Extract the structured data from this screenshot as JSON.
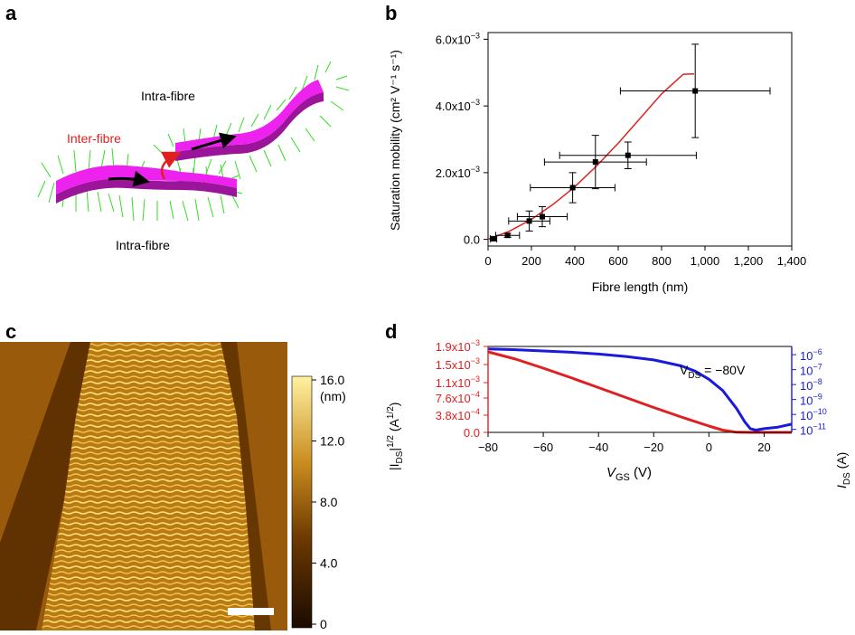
{
  "panels": {
    "a": {
      "letter": "a",
      "labels": {
        "intra_top": "Intra-fibre",
        "inter": "Inter-fibre",
        "intra_bottom": "Intra-fibre"
      },
      "colors": {
        "fibre": "#ee22ee",
        "fibre_dark": "#9b159b",
        "side_chains": "#33dd22",
        "inter_arrow": "#e02020",
        "label_inter": "#e02020",
        "transport_arrow": "#000000"
      }
    },
    "b": {
      "letter": "b"
    },
    "c": {
      "letter": "c",
      "colorbar": {
        "unit": "(nm)",
        "ticks": [
          "16.0",
          "12.0",
          "8.0",
          "4.0",
          "0"
        ]
      },
      "colors": {
        "afm_low": "#1a0b00",
        "afm_mid": "#8a4b00",
        "afm_high": "#fff2a0",
        "scale_bar": "#ffffff"
      }
    },
    "d": {
      "letter": "d"
    }
  },
  "chart_data": [
    {
      "panel": "b",
      "type": "scatter",
      "xlabel": "Fibre length (nm)",
      "ylabel": "Saturation mobility (cm² V⁻¹ s⁻¹)",
      "xlim": [
        0,
        1400
      ],
      "ylim": [
        -0.0002,
        0.0062
      ],
      "x_ticks": [
        0,
        200,
        400,
        600,
        800,
        1000,
        1200,
        1400
      ],
      "x_tick_labels": [
        "0",
        "200",
        "400",
        "600",
        "800",
        "1,000",
        "1,200",
        "1,400"
      ],
      "y_ticks": [
        0,
        0.002,
        0.004,
        0.006
      ],
      "y_tick_labels": [
        {
          "mant": "0.0",
          "exp": ""
        },
        {
          "mant": "2.0x10",
          "exp": "−3"
        },
        {
          "mant": "4.0x10",
          "exp": "−3"
        },
        {
          "mant": "6.0x10",
          "exp": "−3"
        }
      ],
      "points": [
        {
          "x": 25,
          "y": 2e-05,
          "xerr": 15,
          "yerr": 4e-05
        },
        {
          "x": 90,
          "y": 0.00012,
          "xerr": 55,
          "yerr": 6e-05
        },
        {
          "x": 190,
          "y": 0.00055,
          "xerr": 95,
          "yerr": 0.0003
        },
        {
          "x": 250,
          "y": 0.00068,
          "xerr": 115,
          "yerr": 0.0003
        },
        {
          "x": 390,
          "y": 0.00155,
          "xerr": 195,
          "yerr": 0.00045
        },
        {
          "x": 495,
          "y": 0.00232,
          "xerr": 235,
          "yerr": 0.0008
        },
        {
          "x": 645,
          "y": 0.00252,
          "xerr": 315,
          "yerr": 0.0004
        },
        {
          "x": 955,
          "y": 0.00445,
          "xerr": 345,
          "yerr": 0.0014
        }
      ],
      "fit": {
        "x": [
          0,
          100,
          200,
          300,
          400,
          500,
          600,
          700,
          800,
          900,
          950
        ],
        "y": [
          0,
          0.00025,
          0.0006,
          0.00105,
          0.00158,
          0.0022,
          0.00288,
          0.00362,
          0.00436,
          0.00495,
          0.00496
        ]
      },
      "colors": {
        "points": "#000000",
        "fit": "#e02020",
        "axes": "#000000"
      }
    },
    {
      "panel": "d",
      "type": "line",
      "xlabel": {
        "var": "V",
        "sub": "GS",
        "unit": " (V)"
      },
      "xlim": [
        -80,
        30
      ],
      "x_ticks": [
        -80,
        -60,
        -40,
        -20,
        0,
        20
      ],
      "x_tick_labels": [
        "−80",
        "−60",
        "−40",
        "−20",
        "0",
        "20"
      ],
      "annotation": {
        "var": "V",
        "sub": "DS",
        "rest": " = −80V"
      },
      "left_axis": {
        "label": {
          "pre": "|I",
          "sub": "DS",
          "mid": "|",
          "sup": "1/2",
          "post": " (A",
          "sup2": "1/2",
          "end": ")"
        },
        "ylim": [
          0,
          0.0019
        ],
        "ticks": [
          0,
          0.00038,
          0.00076,
          0.0011,
          0.0015,
          0.0019
        ],
        "tick_labels": [
          {
            "mant": "0.0",
            "exp": ""
          },
          {
            "mant": "3.8x10",
            "exp": "−4"
          },
          {
            "mant": "7.6x10",
            "exp": "−4"
          },
          {
            "mant": "1.1x10",
            "exp": "−3"
          },
          {
            "mant": "1.5x10",
            "exp": "−3"
          },
          {
            "mant": "1.9x10",
            "exp": "−3"
          }
        ],
        "color": "#e02020"
      },
      "right_axis": {
        "label": {
          "var": "I",
          "sub": "DS",
          "unit": " (A)"
        },
        "scale": "log",
        "ylim_log10": [
          -11.2,
          -5.45
        ],
        "ticks_log10": [
          -11,
          -10,
          -9,
          -8,
          -7,
          -6
        ],
        "tick_labels": [
          {
            "mant": "10",
            "exp": "−11"
          },
          {
            "mant": "10",
            "exp": "−10"
          },
          {
            "mant": "10",
            "exp": "−9"
          },
          {
            "mant": "10",
            "exp": "−8"
          },
          {
            "mant": "10",
            "exp": "−7"
          },
          {
            "mant": "10",
            "exp": "−6"
          }
        ],
        "color": "#1a1adc"
      },
      "series": [
        {
          "name": "sqrt_IDS",
          "axis": "left",
          "color": "#e02020",
          "x": [
            -80,
            -70,
            -60,
            -50,
            -40,
            -30,
            -20,
            -10,
            0,
            5,
            10,
            15,
            20,
            25,
            30
          ],
          "y": [
            0.00178,
            0.00162,
            0.00142,
            0.00121,
            0.00099,
            0.00077,
            0.00055,
            0.00034,
            0.00014,
            5e-05,
            5e-06,
            0,
            0,
            0,
            0
          ]
        },
        {
          "name": "IDS",
          "axis": "right",
          "color": "#1a1adc",
          "x": [
            -80,
            -70,
            -60,
            -50,
            -40,
            -30,
            -20,
            -10,
            -5,
            0,
            5,
            10,
            13,
            15,
            17,
            20,
            25,
            30
          ],
          "y_log10": [
            -5.62,
            -5.67,
            -5.75,
            -5.84,
            -5.96,
            -6.12,
            -6.35,
            -6.75,
            -7.1,
            -7.65,
            -8.4,
            -9.6,
            -10.5,
            -10.95,
            -11.05,
            -10.95,
            -10.85,
            -10.65
          ]
        }
      ]
    }
  ]
}
